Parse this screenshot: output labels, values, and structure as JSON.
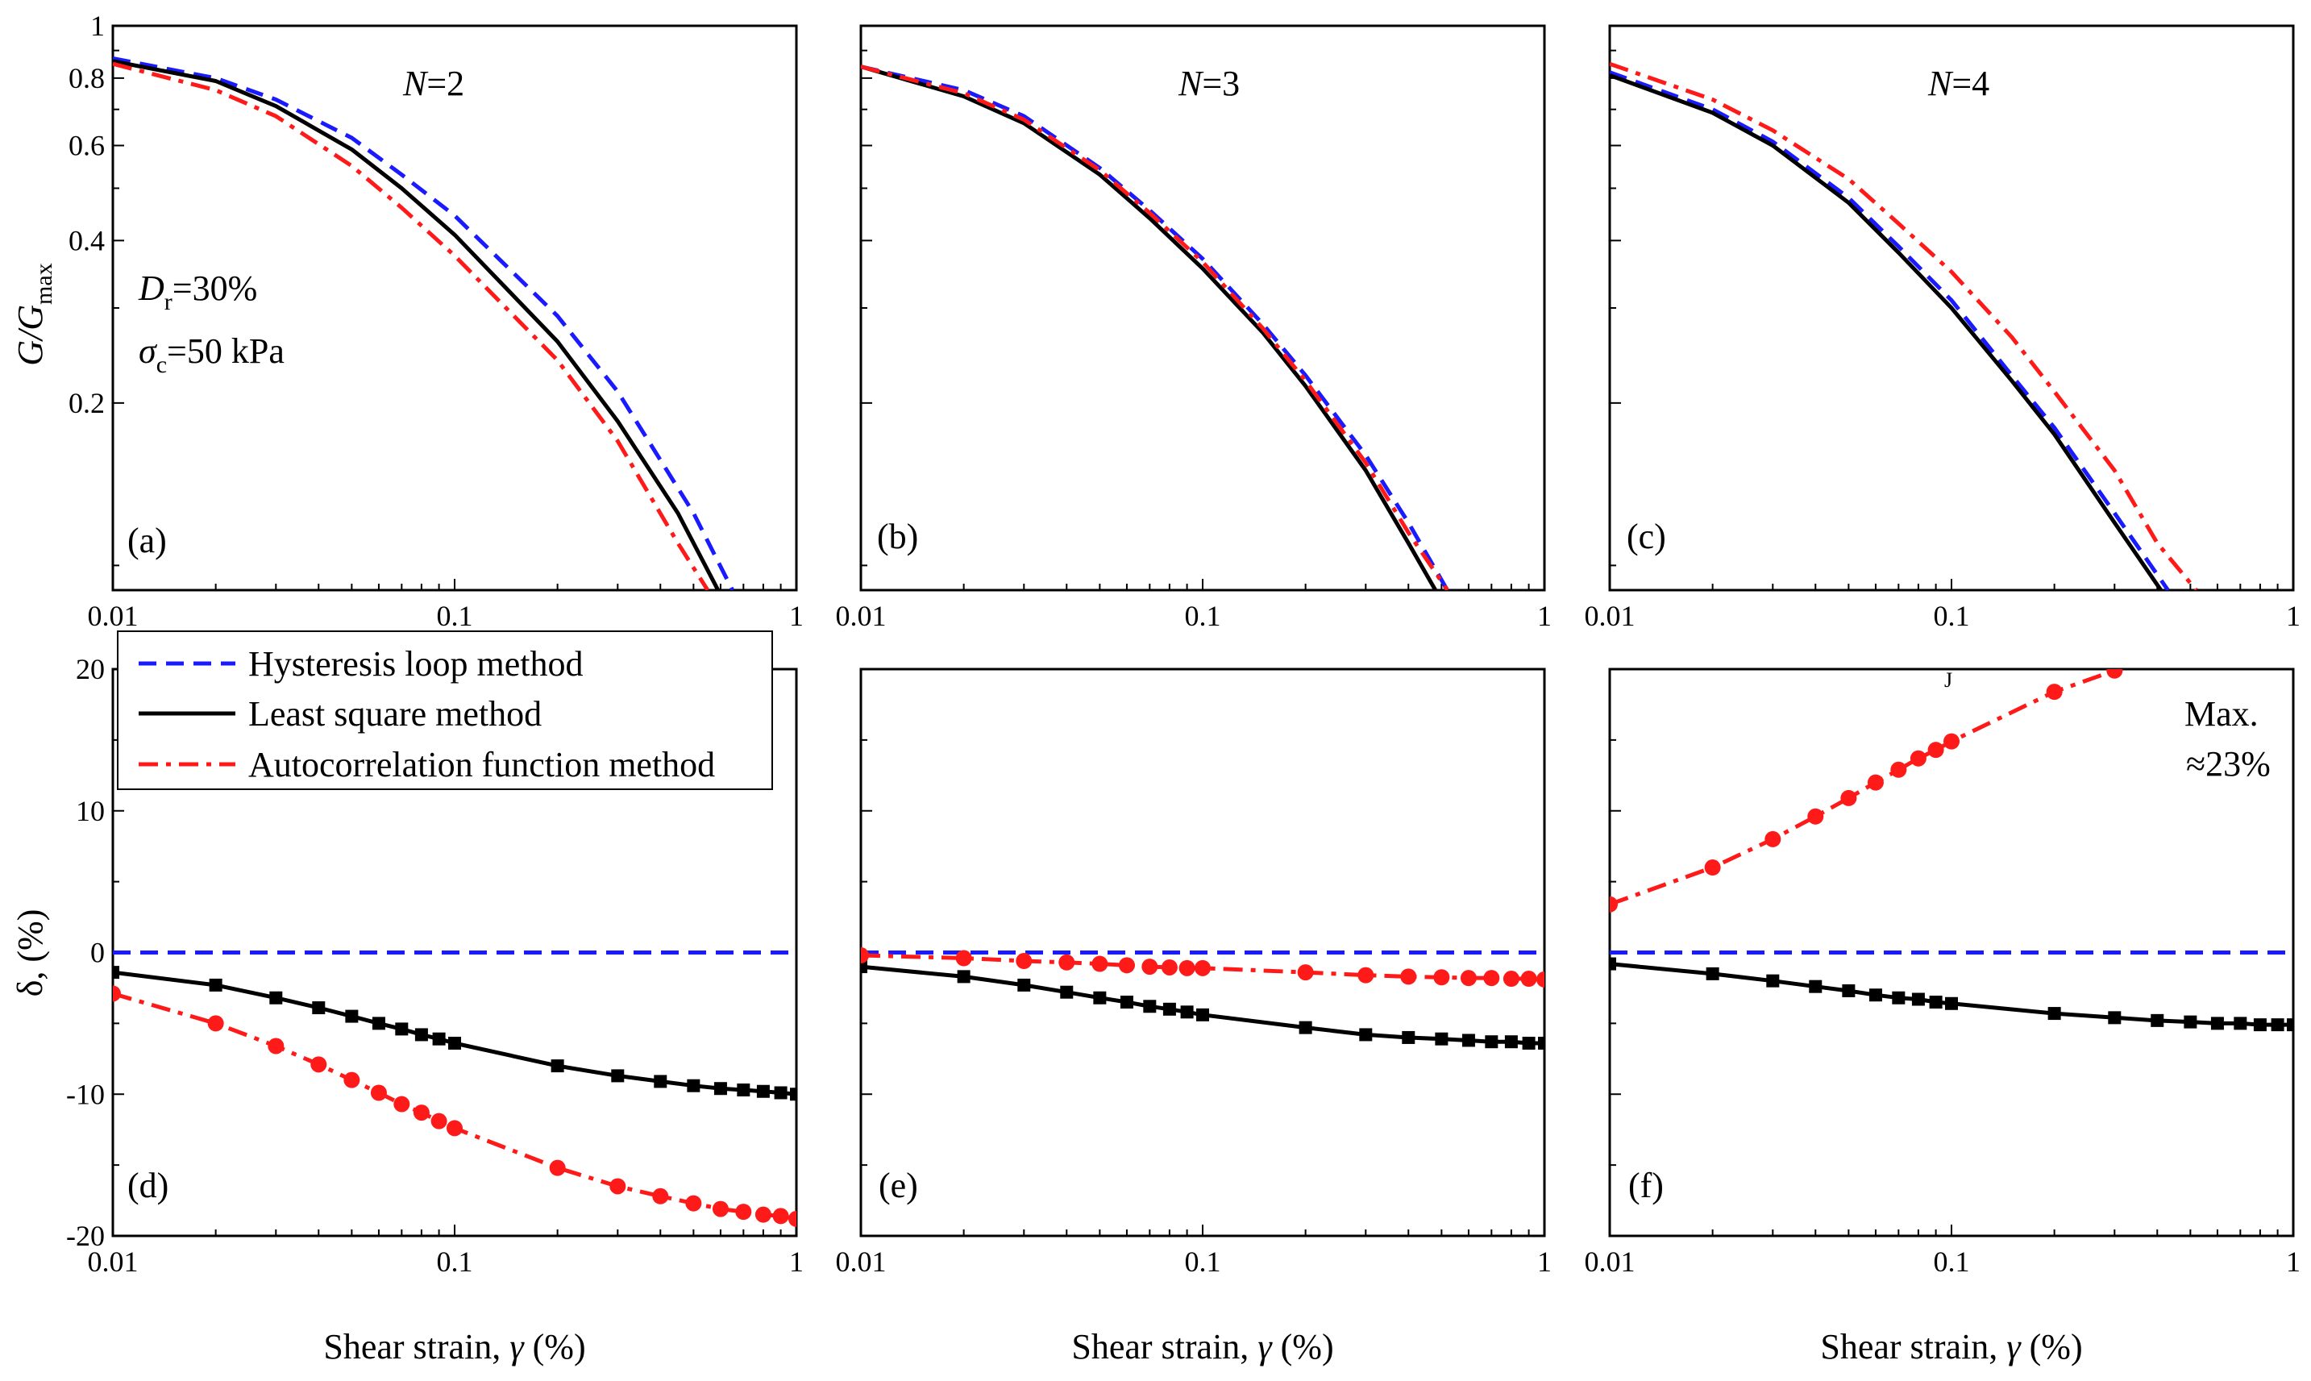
{
  "colors": {
    "hysteresis": "#1a1aff",
    "least_square": "#000000",
    "autocorrelation": "#ff1a1a"
  },
  "legend": {
    "hysteresis": "Hysteresis loop method",
    "least_square": "Least square method",
    "autocorrelation": "Autocorrelation function method"
  },
  "axis_titles": {
    "top_y_main": "G/G",
    "top_y_sub": "max",
    "bottom_y": "δ, (%)",
    "x_main": "Shear strain, ",
    "x_symbol": "γ",
    "x_unit": " (%)"
  },
  "annotations": {
    "dr_main": "D",
    "dr_sub": "r",
    "dr_value": "=30%",
    "sigma_main": "σ",
    "sigma_sub": "c",
    "sigma_value": "=50 kPa",
    "max_line1": "Max.",
    "max_line2": "≈23%",
    "stray_mark": "J"
  },
  "x_ticks": [
    "0.01",
    "0.1",
    "1"
  ],
  "top_y_ticks": [
    "1",
    "0.8",
    "0.6",
    "0.4",
    "0.2"
  ],
  "bottom_y_ticks": [
    "20",
    "10",
    "0",
    "-10",
    "-20"
  ],
  "chart_data": [
    {
      "panel": "(a)",
      "type": "line",
      "title_var": "N",
      "title_value": "=2",
      "xscale": "log",
      "yscale": "log",
      "xlim": [
        0.01,
        1
      ],
      "ylim": [
        0.09,
        1
      ],
      "series": [
        {
          "name": "Hysteresis loop method",
          "x": [
            0.01,
            0.02,
            0.03,
            0.05,
            0.07,
            0.1,
            0.2,
            0.3,
            0.5,
            0.65
          ],
          "y": [
            0.87,
            0.8,
            0.73,
            0.62,
            0.53,
            0.445,
            0.29,
            0.21,
            0.125,
            0.09
          ]
        },
        {
          "name": "Least square method",
          "x": [
            0.01,
            0.02,
            0.03,
            0.05,
            0.07,
            0.1,
            0.2,
            0.3,
            0.45,
            0.59
          ],
          "y": [
            0.86,
            0.79,
            0.71,
            0.59,
            0.5,
            0.41,
            0.26,
            0.185,
            0.125,
            0.09
          ]
        },
        {
          "name": "Autocorrelation function method",
          "x": [
            0.01,
            0.02,
            0.03,
            0.05,
            0.07,
            0.1,
            0.2,
            0.3,
            0.45,
            0.55
          ],
          "y": [
            0.85,
            0.76,
            0.68,
            0.55,
            0.46,
            0.375,
            0.24,
            0.17,
            0.11,
            0.09
          ]
        }
      ]
    },
    {
      "panel": "(b)",
      "type": "line",
      "title_var": "N",
      "title_value": "=3",
      "xscale": "log",
      "yscale": "log",
      "xlim": [
        0.01,
        1
      ],
      "ylim": [
        0.09,
        1
      ],
      "series": [
        {
          "name": "Hysteresis loop method",
          "x": [
            0.01,
            0.02,
            0.03,
            0.05,
            0.07,
            0.1,
            0.15,
            0.2,
            0.3,
            0.4,
            0.52
          ],
          "y": [
            0.84,
            0.76,
            0.68,
            0.545,
            0.455,
            0.37,
            0.28,
            0.225,
            0.16,
            0.12,
            0.09
          ]
        },
        {
          "name": "Least square method",
          "x": [
            0.01,
            0.02,
            0.03,
            0.05,
            0.07,
            0.1,
            0.15,
            0.2,
            0.3,
            0.4,
            0.48
          ],
          "y": [
            0.84,
            0.74,
            0.66,
            0.53,
            0.44,
            0.355,
            0.27,
            0.215,
            0.15,
            0.11,
            0.09
          ]
        },
        {
          "name": "Autocorrelation function method",
          "x": [
            0.01,
            0.02,
            0.03,
            0.05,
            0.07,
            0.1,
            0.15,
            0.2,
            0.3,
            0.4,
            0.52
          ],
          "y": [
            0.84,
            0.75,
            0.67,
            0.54,
            0.45,
            0.365,
            0.275,
            0.22,
            0.155,
            0.115,
            0.09
          ]
        }
      ]
    },
    {
      "panel": "(c)",
      "type": "line",
      "title_var": "N",
      "title_value": "=4",
      "xscale": "log",
      "yscale": "log",
      "xlim": [
        0.01,
        1
      ],
      "ylim": [
        0.09,
        1
      ],
      "series": [
        {
          "name": "Hysteresis loop method",
          "x": [
            0.01,
            0.02,
            0.03,
            0.05,
            0.07,
            0.1,
            0.15,
            0.2,
            0.3,
            0.43
          ],
          "y": [
            0.82,
            0.7,
            0.61,
            0.48,
            0.39,
            0.31,
            0.225,
            0.18,
            0.125,
            0.09
          ]
        },
        {
          "name": "Least square method",
          "x": [
            0.01,
            0.02,
            0.03,
            0.05,
            0.07,
            0.1,
            0.15,
            0.2,
            0.3,
            0.41
          ],
          "y": [
            0.81,
            0.69,
            0.6,
            0.47,
            0.38,
            0.3,
            0.22,
            0.175,
            0.12,
            0.09
          ]
        },
        {
          "name": "Autocorrelation function method",
          "x": [
            0.01,
            0.02,
            0.03,
            0.05,
            0.07,
            0.1,
            0.15,
            0.2,
            0.3,
            0.4,
            0.52
          ],
          "y": [
            0.85,
            0.73,
            0.64,
            0.52,
            0.43,
            0.35,
            0.265,
            0.21,
            0.15,
            0.11,
            0.09
          ]
        }
      ]
    },
    {
      "panel": "(d)",
      "type": "line",
      "xscale": "log",
      "xlim": [
        0.01,
        1
      ],
      "ylim": [
        -20,
        20
      ],
      "series": [
        {
          "name": "Hysteresis loop method",
          "x": [
            0.01,
            1
          ],
          "y": [
            0,
            0
          ]
        },
        {
          "name": "Least square method",
          "markers": "square",
          "x": [
            0.01,
            0.02,
            0.03,
            0.04,
            0.05,
            0.06,
            0.07,
            0.08,
            0.09,
            0.1,
            0.2,
            0.3,
            0.4,
            0.5,
            0.6,
            0.7,
            0.8,
            0.9,
            1.0
          ],
          "y": [
            -1.4,
            -2.3,
            -3.2,
            -3.9,
            -4.5,
            -5.0,
            -5.4,
            -5.8,
            -6.1,
            -6.4,
            -8.0,
            -8.7,
            -9.1,
            -9.4,
            -9.6,
            -9.7,
            -9.8,
            -9.9,
            -10.0
          ]
        },
        {
          "name": "Autocorrelation function method",
          "markers": "circle",
          "x": [
            0.01,
            0.02,
            0.03,
            0.04,
            0.05,
            0.06,
            0.07,
            0.08,
            0.09,
            0.1,
            0.2,
            0.3,
            0.4,
            0.5,
            0.6,
            0.7,
            0.8,
            0.9,
            1.0
          ],
          "y": [
            -2.9,
            -5.0,
            -6.6,
            -7.9,
            -9.0,
            -9.9,
            -10.7,
            -11.3,
            -11.9,
            -12.4,
            -15.2,
            -16.5,
            -17.2,
            -17.7,
            -18.1,
            -18.3,
            -18.5,
            -18.6,
            -18.8
          ]
        }
      ]
    },
    {
      "panel": "(e)",
      "type": "line",
      "xscale": "log",
      "xlim": [
        0.01,
        1
      ],
      "ylim": [
        -20,
        20
      ],
      "series": [
        {
          "name": "Hysteresis loop method",
          "x": [
            0.01,
            1
          ],
          "y": [
            0,
            0
          ]
        },
        {
          "name": "Least square method",
          "markers": "square",
          "x": [
            0.01,
            0.02,
            0.03,
            0.04,
            0.05,
            0.06,
            0.07,
            0.08,
            0.09,
            0.1,
            0.2,
            0.3,
            0.4,
            0.5,
            0.6,
            0.7,
            0.8,
            0.9,
            1.0
          ],
          "y": [
            -1.0,
            -1.7,
            -2.3,
            -2.8,
            -3.2,
            -3.5,
            -3.8,
            -4.0,
            -4.2,
            -4.4,
            -5.3,
            -5.8,
            -6.0,
            -6.1,
            -6.2,
            -6.3,
            -6.3,
            -6.4,
            -6.4
          ]
        },
        {
          "name": "Autocorrelation function method",
          "markers": "circle",
          "x": [
            0.01,
            0.02,
            0.03,
            0.04,
            0.05,
            0.06,
            0.07,
            0.08,
            0.09,
            0.1,
            0.2,
            0.3,
            0.4,
            0.5,
            0.6,
            0.7,
            0.8,
            0.9,
            1.0
          ],
          "y": [
            -0.2,
            -0.4,
            -0.6,
            -0.7,
            -0.8,
            -0.9,
            -1.0,
            -1.05,
            -1.1,
            -1.1,
            -1.4,
            -1.6,
            -1.7,
            -1.75,
            -1.8,
            -1.8,
            -1.85,
            -1.85,
            -1.9
          ]
        }
      ]
    },
    {
      "panel": "(f)",
      "type": "line",
      "xscale": "log",
      "xlim": [
        0.01,
        1
      ],
      "ylim": [
        -20,
        20
      ],
      "series": [
        {
          "name": "Hysteresis loop method",
          "x": [
            0.01,
            1
          ],
          "y": [
            0,
            0
          ]
        },
        {
          "name": "Least square method",
          "markers": "square",
          "x": [
            0.01,
            0.02,
            0.03,
            0.04,
            0.05,
            0.06,
            0.07,
            0.08,
            0.09,
            0.1,
            0.2,
            0.3,
            0.4,
            0.5,
            0.6,
            0.7,
            0.8,
            0.9,
            1.0
          ],
          "y": [
            -0.8,
            -1.5,
            -2.0,
            -2.4,
            -2.7,
            -3.0,
            -3.2,
            -3.3,
            -3.5,
            -3.6,
            -4.3,
            -4.6,
            -4.8,
            -4.9,
            -5.0,
            -5.0,
            -5.1,
            -5.1,
            -5.1
          ]
        },
        {
          "name": "Autocorrelation function method",
          "markers": "circle",
          "x": [
            0.01,
            0.02,
            0.03,
            0.04,
            0.05,
            0.06,
            0.07,
            0.08,
            0.09,
            0.1,
            0.2,
            0.3
          ],
          "y": [
            3.4,
            6.0,
            8.0,
            9.6,
            10.9,
            12.0,
            12.9,
            13.7,
            14.3,
            14.9,
            18.4,
            19.9
          ]
        }
      ]
    }
  ]
}
